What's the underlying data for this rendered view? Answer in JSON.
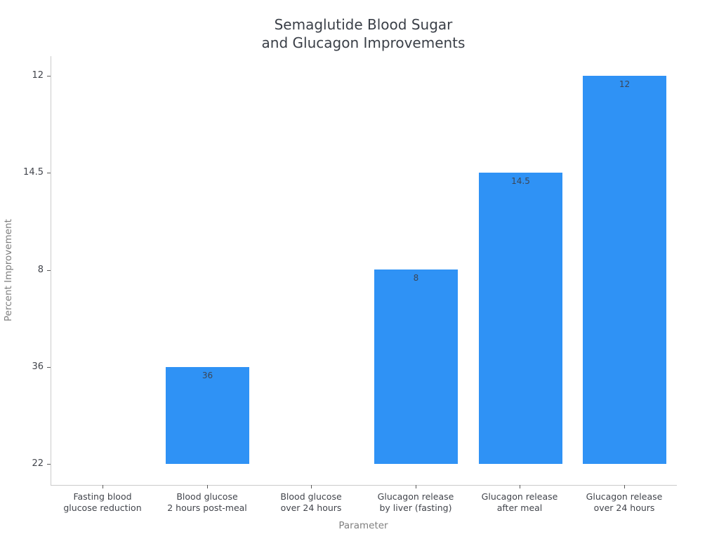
{
  "chart_data": {
    "type": "bar",
    "title": "Semaglutide Blood Sugar and Glucagon Improvements",
    "title_lines": [
      "Semaglutide Blood Sugar",
      "and Glucagon Improvements"
    ],
    "xlabel": "Parameter",
    "ylabel": "Percent Improvement",
    "categories": [
      "Fasting blood glucose reduction",
      "Blood glucose 2 hours post-meal",
      "Blood glucose over 24 hours",
      "Glucagon release by liver (fasting)",
      "Glucagon release after meal",
      "Glucagon release over 24 hours"
    ],
    "category_label_lines": [
      [
        "Fasting blood",
        "glucose reduction"
      ],
      [
        "Blood glucose",
        "2 hours post-meal"
      ],
      [
        "Blood glucose",
        "over 24 hours"
      ],
      [
        "Glucagon release",
        "by liver (fasting)"
      ],
      [
        "Glucagon release",
        "after meal"
      ],
      [
        "Glucagon release",
        "over 24 hours"
      ]
    ],
    "values": [
      22,
      36,
      22,
      8,
      14.5,
      12
    ],
    "visible_bar_value_labels": [
      "36",
      "8",
      "14.5",
      "12"
    ],
    "y_axis_type": "category",
    "y_tick_labels_bottom_to_top": [
      "22",
      "36",
      "8",
      "14.5",
      "12"
    ],
    "y_tick_labels_top_to_bottom": [
      "12",
      "14.5",
      "8",
      "36",
      "22"
    ],
    "bar_color": "#2f92f5",
    "background_color": "#ffffff",
    "grid": false,
    "legend": "none"
  }
}
